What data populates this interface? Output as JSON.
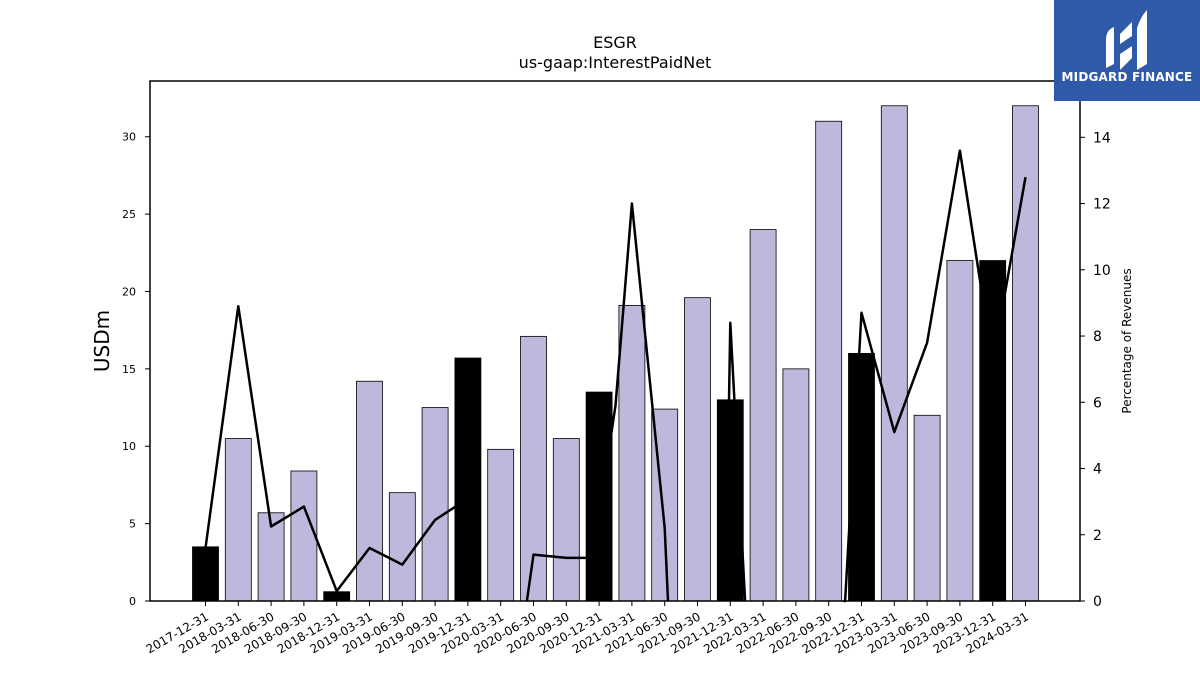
{
  "logo": {
    "text": "MIDGARD FINANCE",
    "color": "#2f5aa9"
  },
  "chart_data": {
    "type": "bar",
    "title": "ESGR",
    "subtitle": "us-gaap:InterestPaidNet",
    "ylabel": "USDm",
    "y2label": "Percentage of Revenues",
    "ylim": [
      0,
      33.6
    ],
    "y2lim": [
      0,
      15.7
    ],
    "yticks": [
      0,
      5,
      10,
      15,
      20,
      25,
      30
    ],
    "y2ticks": [
      0,
      2,
      4,
      6,
      8,
      10,
      12,
      14
    ],
    "categories": [
      "2017-12-31",
      "2018-03-31",
      "2018-06-30",
      "2018-09-30",
      "2018-12-31",
      "2019-03-31",
      "2019-06-30",
      "2019-09-30",
      "2019-12-31",
      "2020-03-31",
      "2020-06-30",
      "2020-09-30",
      "2020-12-31",
      "2021-03-31",
      "2021-06-30",
      "2021-09-30",
      "2021-12-31",
      "2022-03-31",
      "2022-06-30",
      "2022-09-30",
      "2022-12-31",
      "2023-03-31",
      "2023-06-30",
      "2023-09-30",
      "2023-12-31",
      "2024-03-31"
    ],
    "series": [
      {
        "axis": "left",
        "type": "bar",
        "values": [
          3.5,
          10.5,
          5.7,
          8.4,
          0.6,
          14.2,
          7.0,
          12.5,
          15.7,
          9.8,
          17.1,
          10.5,
          13.5,
          19.1,
          12.4,
          19.6,
          13.0,
          24.0,
          15.0,
          31.0,
          16.0,
          32.0,
          12.0,
          22.0,
          22.0,
          32.0
        ],
        "year_end": [
          true,
          false,
          false,
          false,
          true,
          false,
          false,
          false,
          true,
          false,
          false,
          false,
          true,
          false,
          false,
          false,
          true,
          false,
          false,
          false,
          true,
          false,
          false,
          false,
          true,
          false
        ],
        "color_quarter": "#bcb9dc",
        "color_year_end": "#000000"
      },
      {
        "axis": "right",
        "type": "line",
        "color": "#000000",
        "segments": [
          {
            "x": [
              0,
              1,
              2,
              3,
              4,
              5,
              6,
              7,
              7.7
            ],
            "y": [
              1.6,
              8.9,
              2.25,
              2.85,
              0.3,
              1.6,
              1.1,
              2.45,
              2.9
            ]
          },
          {
            "x": [
              9.8,
              10,
              11,
              11.8,
              12.5,
              13,
              14,
              14.1
            ],
            "y": [
              0,
              1.4,
              1.3,
              1.3,
              5.9,
              12.0,
              2.2,
              0
            ]
          },
          {
            "x": [
              15.95,
              16,
              16.45
            ],
            "y": [
              5.5,
              8.4,
              0
            ]
          },
          {
            "x": [
              19.45,
              19.5,
              20,
              21,
              22,
              23,
              24,
              25
            ],
            "y": [
              0,
              0,
              8.7,
              5.1,
              7.8,
              13.6,
              7.2,
              12.8
            ]
          }
        ]
      }
    ]
  }
}
